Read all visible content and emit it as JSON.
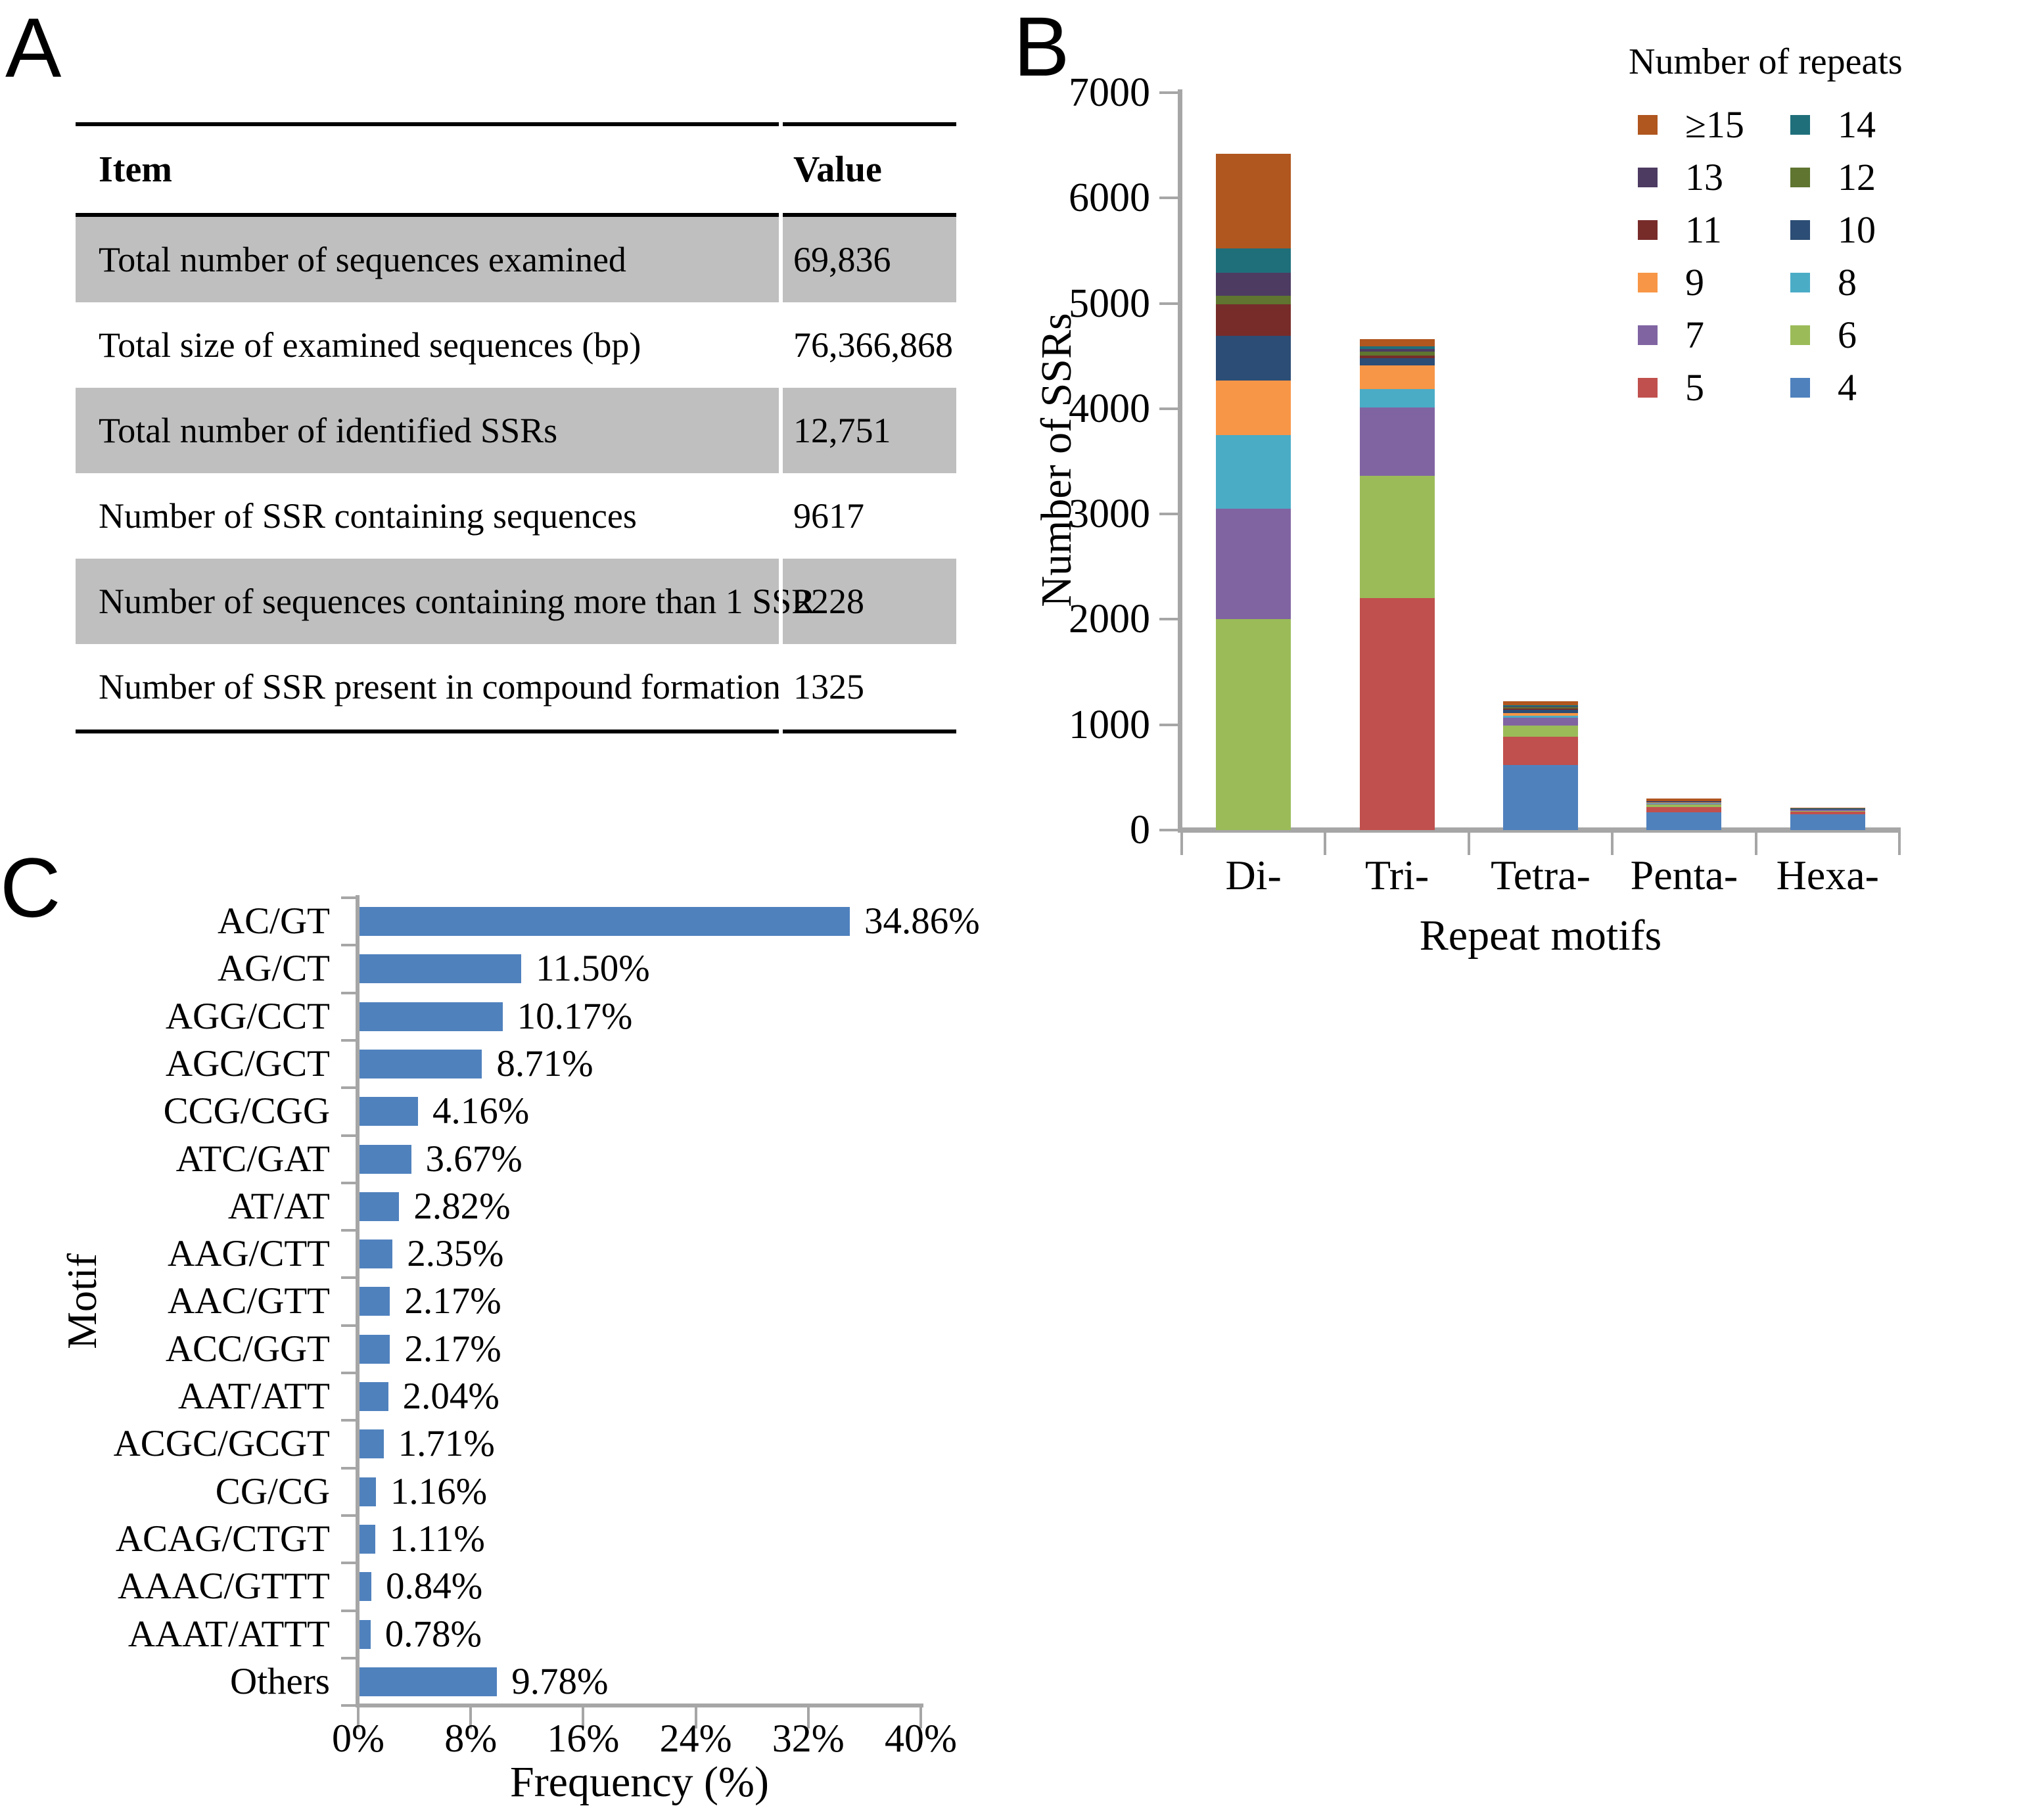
{
  "panels": {
    "a": "A",
    "b": "B",
    "c": "C"
  },
  "colors": {
    "axis": "#A6A6A6",
    "table_shade": "#BFBFBF",
    "motif_bar": "#4F81BD"
  },
  "chart_data": [
    {
      "type": "table",
      "panel": "A",
      "headers": [
        "Item",
        "Value"
      ],
      "rows": [
        {
          "item": "Total number of sequences examined",
          "value": "69,836",
          "shaded": true
        },
        {
          "item": "Total size of examined sequences (bp)",
          "value": "76,366,868",
          "shaded": false
        },
        {
          "item": "Total number of identified SSRs",
          "value": "12,751",
          "shaded": true
        },
        {
          "item": "Number of SSR containing sequences",
          "value": "9617",
          "shaded": false
        },
        {
          "item": "Number of sequences containing more than 1 SSR",
          "value": "2228",
          "shaded": true
        },
        {
          "item": "Number of SSR present in compound formation",
          "value": "1325",
          "shaded": false
        }
      ]
    },
    {
      "type": "bar",
      "subtype": "stacked-vertical",
      "panel": "B",
      "xlabel": "Repeat motifs",
      "ylabel": "Number of SSRs",
      "categories": [
        "Di-",
        "Tri-",
        "Tetra-",
        "Penta-",
        "Hexa-"
      ],
      "ylim": [
        0,
        7000
      ],
      "ytick_step": 1000,
      "grid": false,
      "legend_title": "Number of repeats",
      "legend_layout": [
        [
          "≥15",
          "14"
        ],
        [
          "13",
          "12"
        ],
        [
          "11",
          "10"
        ],
        [
          "9",
          "8"
        ],
        [
          "7",
          "6"
        ],
        [
          "5",
          "4"
        ]
      ],
      "series": [
        {
          "name": "4",
          "color": "#4F81BD",
          "values": [
            0,
            0,
            620,
            165,
            150
          ]
        },
        {
          "name": "5",
          "color": "#C0504D",
          "values": [
            0,
            2200,
            265,
            55,
            25
          ]
        },
        {
          "name": "6",
          "color": "#9BBB59",
          "values": [
            2000,
            1160,
            105,
            20,
            8
          ]
        },
        {
          "name": "7",
          "color": "#8064A2",
          "values": [
            1050,
            650,
            75,
            10,
            8
          ]
        },
        {
          "name": "8",
          "color": "#4BACC6",
          "values": [
            700,
            175,
            20,
            5,
            2
          ]
        },
        {
          "name": "9",
          "color": "#F79646",
          "values": [
            520,
            225,
            25,
            5,
            2
          ]
        },
        {
          "name": "10",
          "color": "#2C4D75",
          "values": [
            420,
            70,
            30,
            5,
            2
          ]
        },
        {
          "name": "11",
          "color": "#772C2A",
          "values": [
            300,
            25,
            15,
            3,
            2
          ]
        },
        {
          "name": "12",
          "color": "#5F7530",
          "values": [
            80,
            35,
            10,
            3,
            2
          ]
        },
        {
          "name": "13",
          "color": "#4D3B62",
          "values": [
            220,
            25,
            10,
            2,
            1
          ]
        },
        {
          "name": "14",
          "color": "#1F6F7B",
          "values": [
            230,
            25,
            10,
            2,
            1
          ]
        },
        {
          "name": "≥15",
          "color": "#B0561F",
          "values": [
            900,
            70,
            35,
            25,
            12
          ]
        }
      ]
    },
    {
      "type": "bar",
      "subtype": "horizontal",
      "panel": "C",
      "xlabel": "Frequency (%)",
      "ylabel": "Motif",
      "bar_color": "#4F81BD",
      "xlim": [
        0,
        40
      ],
      "xtick_labels": [
        "0%",
        "8%",
        "16%",
        "24%",
        "32%",
        "40%"
      ],
      "xtick_values": [
        0,
        8,
        16,
        24,
        32,
        40
      ],
      "categories": [
        "AC/GT",
        "AG/CT",
        "AGG/CCT",
        "AGC/GCT",
        "CCG/CGG",
        "ATC/GAT",
        "AT/AT",
        "AAG/CTT",
        "AAC/GTT",
        "ACC/GGT",
        "AAT/ATT",
        "ACGC/GCGT",
        "CG/CG",
        "ACAG/CTGT",
        "AAAC/GTTT",
        "AAAT/ATTT",
        "Others"
      ],
      "values": [
        34.86,
        11.5,
        10.17,
        8.71,
        4.16,
        3.67,
        2.82,
        2.35,
        2.17,
        2.17,
        2.04,
        1.71,
        1.16,
        1.11,
        0.84,
        0.78,
        9.78
      ],
      "value_labels": [
        "34.86%",
        "11.50%",
        "10.17%",
        "8.71%",
        "4.16%",
        "3.67%",
        "2.82%",
        "2.35%",
        "2.17%",
        "2.17%",
        "2.04%",
        "1.71%",
        "1.16%",
        "1.11%",
        "0.84%",
        "0.78%",
        "9.78%"
      ]
    }
  ]
}
